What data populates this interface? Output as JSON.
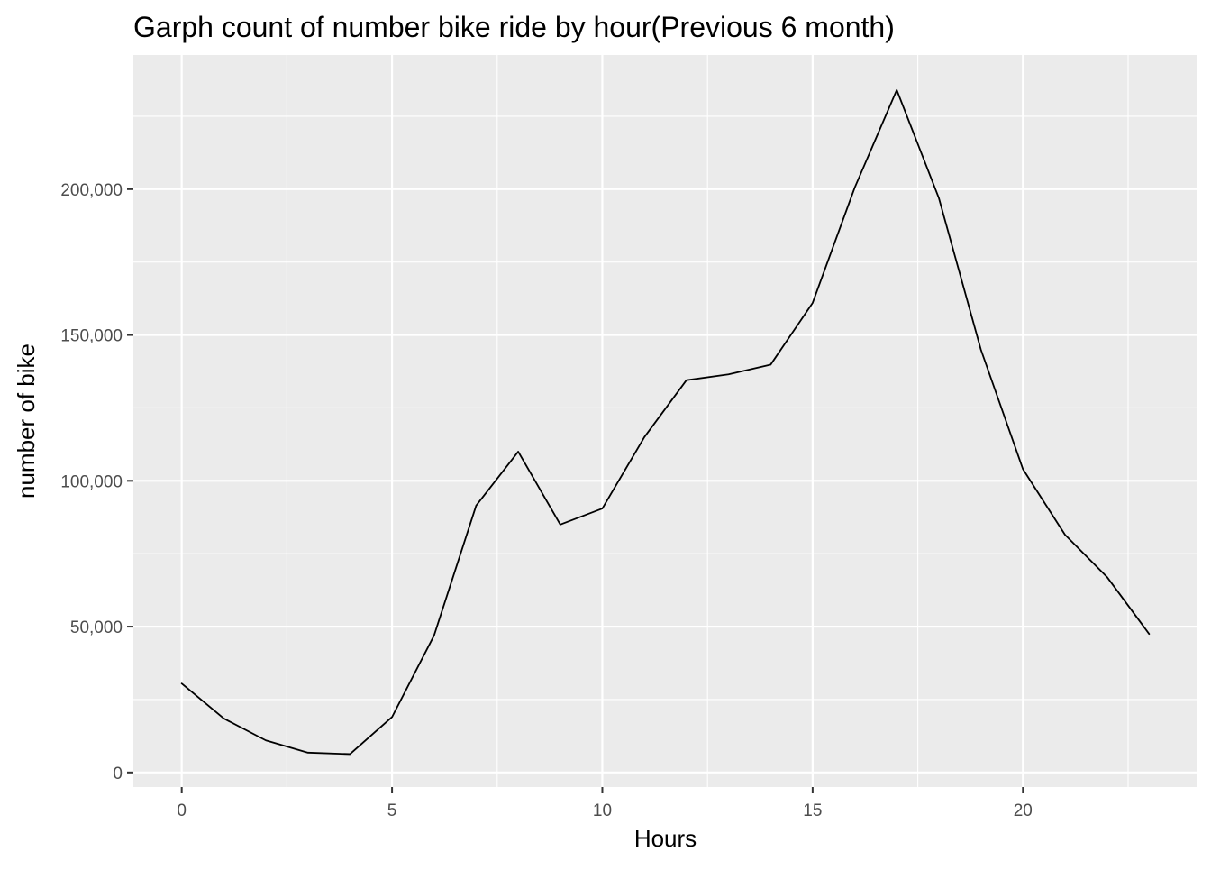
{
  "chart_data": {
    "type": "line",
    "title": "Garph count of number bike ride by hour(Previous 6 month)",
    "xlabel": "Hours",
    "ylabel": "number of bike",
    "xlim": [
      -1.15,
      24.15
    ],
    "ylim": [
      -5000,
      246000
    ],
    "x_ticks": [
      {
        "value": 0,
        "label": "0"
      },
      {
        "value": 5,
        "label": "5"
      },
      {
        "value": 10,
        "label": "10"
      },
      {
        "value": 15,
        "label": "15"
      },
      {
        "value": 20,
        "label": "20"
      }
    ],
    "x_minor_ticks": [
      2.5,
      7.5,
      12.5,
      17.5,
      22.5
    ],
    "y_ticks": [
      {
        "value": 0,
        "label": "0"
      },
      {
        "value": 50000,
        "label": "50,000"
      },
      {
        "value": 100000,
        "label": "100,000"
      },
      {
        "value": 150000,
        "label": "150,000"
      },
      {
        "value": 200000,
        "label": "200,000"
      }
    ],
    "y_minor_ticks": [
      25000,
      75000,
      125000,
      175000,
      225000
    ],
    "grid": true,
    "colors": {
      "panel_background": "#ebebeb",
      "grid_line": "#ffffff",
      "line": "#000000",
      "tick_label": "#4d4d4d",
      "tick_mark": "#333333"
    },
    "series": [
      {
        "x": [
          0,
          1,
          2,
          3,
          4,
          5,
          6,
          7,
          8,
          9,
          10,
          11,
          12,
          13,
          14,
          15,
          16,
          17,
          18,
          19,
          20,
          21,
          22,
          23
        ],
        "values": [
          30500,
          18500,
          11000,
          6800,
          6300,
          19000,
          47000,
          91500,
          110000,
          85000,
          90500,
          115000,
          134500,
          136500,
          139800,
          161000,
          200500,
          234000,
          197000,
          145000,
          104000,
          81500,
          67000,
          47500
        ]
      }
    ]
  }
}
